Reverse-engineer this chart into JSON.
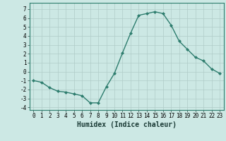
{
  "x": [
    0,
    1,
    2,
    3,
    4,
    5,
    6,
    7,
    8,
    9,
    10,
    11,
    12,
    13,
    14,
    15,
    16,
    17,
    18,
    19,
    20,
    21,
    22,
    23
  ],
  "y": [
    -1.0,
    -1.2,
    -1.8,
    -2.2,
    -2.3,
    -2.5,
    -2.7,
    -3.5,
    -3.5,
    -1.7,
    -0.2,
    2.1,
    4.3,
    6.3,
    6.5,
    6.7,
    6.5,
    5.2,
    3.4,
    2.5,
    1.6,
    1.2,
    0.3,
    -0.2
  ],
  "xlabel": "Humidex (Indice chaleur)",
  "ylim": [
    -4.3,
    7.7
  ],
  "xlim": [
    -0.5,
    23.5
  ],
  "yticks": [
    -4,
    -3,
    -2,
    -1,
    0,
    1,
    2,
    3,
    4,
    5,
    6,
    7
  ],
  "xticks": [
    0,
    1,
    2,
    3,
    4,
    5,
    6,
    7,
    8,
    9,
    10,
    11,
    12,
    13,
    14,
    15,
    16,
    17,
    18,
    19,
    20,
    21,
    22,
    23
  ],
  "line_color": "#2e7d6e",
  "marker": "D",
  "marker_size": 2.0,
  "bg_color": "#cce8e4",
  "grid_color": "#b0ccc8",
  "xlabel_fontsize": 7,
  "tick_fontsize": 5.5,
  "line_width": 1.0
}
